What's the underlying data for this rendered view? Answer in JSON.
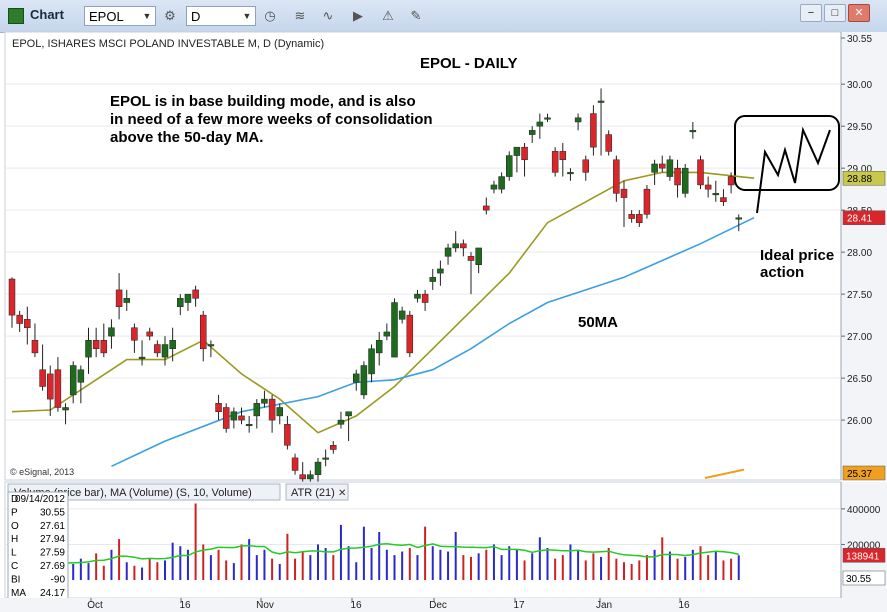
{
  "window": {
    "title": "Chart",
    "symbol": "EPOL",
    "interval": "D",
    "buttons": [
      "−",
      "□",
      "✕"
    ]
  },
  "toolbar_icons": [
    "settings-icon",
    "clock-icon",
    "line-chart-icon",
    "play-icon",
    "alert-icon",
    "draw-icon"
  ],
  "price_pane": {
    "header": "EPOL, ISHARES MSCI POLAND INVESTABLE M, D (Dynamic)",
    "chart_title": "EPOL - DAILY",
    "annotation": [
      "EPOL is in base building mode, and is also",
      "in need of a few more weeks of consolidation",
      "above the 50-day MA."
    ],
    "ma_label": "50MA",
    "ideal_label": [
      "Ideal price",
      "action"
    ],
    "copyright": "© eSignal, 2013",
    "y_ticks": [
      "30.55",
      "30.00",
      "29.50",
      "29.00",
      "28.50",
      "28.00",
      "27.50",
      "27.00",
      "26.50",
      "26.00"
    ],
    "badges": [
      {
        "text": "28.88",
        "value": 28.88,
        "bg": "#c8c84a",
        "fg": "#000000"
      },
      {
        "text": "28.41",
        "value": 28.41,
        "bg": "#d9262b",
        "fg": "#ffffff"
      },
      {
        "text": "25.37",
        "value": 25.37,
        "bg": "#f0a020",
        "fg": "#000000"
      }
    ]
  },
  "volume_pane": {
    "tabs": [
      "Volume (price bar), MA (Volume) (S, 10, Volume)",
      "ATR (21)"
    ],
    "tab_close": "✕",
    "y_ticks": [
      "400000",
      "200000"
    ],
    "badges": [
      {
        "text": "138941",
        "bg": "#d9262b",
        "fg": "#ffffff"
      },
      {
        "text": "30.55",
        "bg": "#ffffff",
        "fg": "#000000"
      }
    ]
  },
  "data_window": {
    "rows": [
      {
        "label": "D",
        "value": "09/14/2012"
      },
      {
        "label": "P",
        "value": "30.55"
      },
      {
        "label": "O",
        "value": "27.61"
      },
      {
        "label": "H",
        "value": "27.94"
      },
      {
        "label": "L",
        "value": "27.59"
      },
      {
        "label": "C",
        "value": "27.69"
      },
      {
        "label": "BI",
        "value": "-90"
      },
      {
        "label": "MA",
        "value": "24.17"
      }
    ]
  },
  "x_labels": [
    "Oct",
    "16",
    "Nov",
    "16",
    "Dec",
    "17",
    "Jan",
    "16"
  ],
  "colors": {
    "up": "#1e6b1e",
    "down": "#d9262b",
    "ma_short": "#9a9a1f",
    "ma_50": "#3aa0e0",
    "vol_up": "#2a2acc",
    "vol_down": "#cc2222",
    "vol_ma": "#22cc22",
    "atr": "#f0a020"
  },
  "chart_data": {
    "type": "candlestick",
    "ylim": [
      25.37,
      30.55
    ],
    "candles": [
      [
        27.68,
        27.7,
        27.1,
        27.25
      ],
      [
        27.25,
        27.3,
        27.05,
        27.15
      ],
      [
        27.2,
        27.35,
        26.9,
        27.1
      ],
      [
        26.95,
        27.15,
        26.75,
        26.8
      ],
      [
        26.6,
        26.9,
        26.35,
        26.4
      ],
      [
        26.55,
        26.65,
        26.05,
        26.25
      ],
      [
        26.6,
        26.75,
        26.1,
        26.15
      ],
      [
        26.12,
        26.2,
        25.95,
        26.15
      ],
      [
        26.3,
        26.7,
        26.2,
        26.65
      ],
      [
        26.45,
        26.65,
        26.2,
        26.6
      ],
      [
        26.75,
        27.1,
        26.55,
        26.95
      ],
      [
        26.95,
        27.1,
        26.75,
        26.85
      ],
      [
        26.95,
        27.15,
        26.75,
        26.8
      ],
      [
        27.0,
        27.2,
        26.85,
        27.1
      ],
      [
        27.55,
        27.75,
        27.2,
        27.35
      ],
      [
        27.4,
        27.55,
        27.3,
        27.45
      ],
      [
        27.1,
        27.15,
        26.8,
        26.95
      ],
      [
        26.75,
        26.95,
        26.65,
        26.75
      ],
      [
        27.05,
        27.1,
        26.95,
        27.0
      ],
      [
        26.9,
        26.95,
        26.75,
        26.8
      ],
      [
        26.75,
        27.0,
        26.65,
        26.9
      ],
      [
        26.85,
        27.1,
        26.7,
        26.95
      ],
      [
        27.35,
        27.5,
        27.25,
        27.45
      ],
      [
        27.4,
        27.5,
        27.3,
        27.5
      ],
      [
        27.55,
        27.6,
        27.35,
        27.45
      ],
      [
        27.25,
        27.3,
        26.7,
        26.85
      ],
      [
        26.9,
        26.95,
        26.75,
        26.9
      ],
      [
        26.2,
        26.3,
        26.0,
        26.1
      ],
      [
        26.15,
        26.2,
        25.85,
        25.9
      ],
      [
        26.0,
        26.15,
        25.9,
        26.1
      ],
      [
        26.05,
        26.15,
        25.95,
        26.0
      ],
      [
        25.95,
        26.05,
        25.85,
        25.95
      ],
      [
        26.05,
        26.25,
        25.9,
        26.2
      ],
      [
        26.2,
        26.35,
        26.15,
        26.25
      ],
      [
        26.25,
        26.3,
        25.85,
        26.0
      ],
      [
        26.05,
        26.2,
        25.95,
        26.15
      ],
      [
        25.95,
        26.05,
        25.65,
        25.7
      ],
      [
        25.55,
        25.6,
        25.35,
        25.4
      ],
      [
        25.35,
        25.5,
        25.25,
        25.3
      ],
      [
        25.3,
        25.4,
        25.2,
        25.35
      ],
      [
        25.35,
        25.55,
        25.25,
        25.5
      ],
      [
        25.55,
        25.65,
        25.45,
        25.55
      ],
      [
        25.7,
        25.75,
        25.6,
        25.65
      ],
      [
        25.95,
        26.1,
        25.9,
        26.0
      ],
      [
        26.05,
        26.1,
        25.75,
        26.1
      ],
      [
        26.45,
        26.6,
        26.35,
        26.55
      ],
      [
        26.3,
        26.7,
        26.25,
        26.65
      ],
      [
        26.55,
        26.9,
        26.45,
        26.85
      ],
      [
        26.8,
        27.05,
        26.65,
        26.95
      ],
      [
        27.0,
        27.15,
        26.95,
        27.05
      ],
      [
        26.75,
        27.45,
        26.75,
        27.4
      ],
      [
        27.2,
        27.35,
        27.15,
        27.3
      ],
      [
        27.25,
        27.3,
        26.75,
        26.8
      ],
      [
        27.45,
        27.55,
        27.4,
        27.5
      ],
      [
        27.5,
        27.55,
        27.3,
        27.4
      ],
      [
        27.65,
        27.8,
        27.55,
        27.7
      ],
      [
        27.75,
        27.9,
        27.6,
        27.8
      ],
      [
        27.95,
        28.1,
        27.85,
        28.05
      ],
      [
        28.05,
        28.25,
        28.0,
        28.1
      ],
      [
        28.1,
        28.15,
        27.95,
        28.05
      ],
      [
        27.95,
        28.0,
        27.5,
        27.9
      ],
      [
        27.85,
        28.05,
        27.75,
        28.05
      ],
      [
        28.55,
        28.65,
        28.45,
        28.5
      ],
      [
        28.75,
        28.85,
        28.7,
        28.8
      ],
      [
        28.75,
        28.95,
        28.7,
        28.9
      ],
      [
        28.9,
        29.2,
        28.85,
        29.15
      ],
      [
        29.15,
        29.25,
        28.95,
        29.25
      ],
      [
        29.25,
        29.3,
        28.9,
        29.1
      ],
      [
        29.4,
        29.5,
        29.3,
        29.45
      ],
      [
        29.5,
        29.65,
        29.35,
        29.55
      ],
      [
        29.6,
        29.65,
        29.55,
        29.6
      ],
      [
        29.2,
        29.25,
        28.9,
        28.95
      ],
      [
        29.2,
        29.3,
        28.9,
        29.1
      ],
      [
        28.95,
        29.0,
        28.85,
        28.95
      ],
      [
        29.55,
        29.65,
        29.45,
        29.6
      ],
      [
        29.1,
        29.15,
        28.85,
        28.95
      ],
      [
        29.65,
        29.75,
        29.15,
        29.25
      ],
      [
        29.8,
        29.95,
        29.15,
        29.8
      ],
      [
        29.4,
        29.45,
        29.15,
        29.2
      ],
      [
        29.1,
        29.15,
        28.6,
        28.7
      ],
      [
        28.75,
        28.85,
        28.3,
        28.65
      ],
      [
        28.45,
        28.5,
        28.35,
        28.4
      ],
      [
        28.45,
        28.5,
        28.3,
        28.35
      ],
      [
        28.75,
        28.8,
        28.4,
        28.45
      ],
      [
        28.95,
        29.1,
        28.8,
        29.05
      ],
      [
        29.05,
        29.15,
        28.95,
        29.0
      ],
      [
        28.9,
        29.15,
        28.85,
        29.1
      ],
      [
        29.0,
        29.1,
        28.65,
        28.8
      ],
      [
        28.7,
        29.05,
        28.65,
        29.0
      ],
      [
        29.45,
        29.55,
        29.35,
        29.45
      ],
      [
        29.1,
        29.15,
        28.75,
        28.8
      ],
      [
        28.8,
        28.9,
        28.65,
        28.75
      ],
      [
        28.7,
        28.85,
        28.6,
        28.7
      ],
      [
        28.65,
        28.75,
        28.55,
        28.6
      ],
      [
        28.9,
        28.95,
        28.7,
        28.8
      ],
      [
        28.4,
        28.45,
        28.25,
        28.41
      ]
    ],
    "ma_short": [
      [
        0,
        26.1
      ],
      [
        5,
        26.12
      ],
      [
        10,
        26.42
      ],
      [
        15,
        26.72
      ],
      [
        20,
        26.72
      ],
      [
        25,
        26.95
      ],
      [
        30,
        26.55
      ],
      [
        35,
        26.25
      ],
      [
        40,
        25.85
      ],
      [
        45,
        26.05
      ],
      [
        50,
        26.4
      ],
      [
        55,
        26.85
      ],
      [
        60,
        27.3
      ],
      [
        65,
        27.75
      ],
      [
        70,
        28.35
      ],
      [
        75,
        28.6
      ],
      [
        80,
        28.85
      ],
      [
        85,
        28.95
      ],
      [
        90,
        28.95
      ],
      [
        97,
        28.88
      ]
    ],
    "ma_50": [
      [
        13,
        25.45
      ],
      [
        20,
        25.75
      ],
      [
        30,
        26.1
      ],
      [
        40,
        26.28
      ],
      [
        45,
        26.45
      ],
      [
        50,
        26.48
      ],
      [
        55,
        26.6
      ],
      [
        60,
        26.85
      ],
      [
        65,
        27.15
      ],
      [
        70,
        27.4
      ],
      [
        75,
        27.55
      ],
      [
        80,
        27.7
      ],
      [
        85,
        27.9
      ],
      [
        90,
        28.1
      ],
      [
        97,
        28.41
      ]
    ],
    "volume": [
      60,
      70,
      65,
      80,
      90,
      110,
      140,
      160,
      90,
      120,
      95,
      150,
      80,
      170,
      230,
      100,
      80,
      70,
      120,
      100,
      110,
      210,
      190,
      170,
      430,
      200,
      140,
      170,
      110,
      95,
      200,
      230,
      140,
      170,
      120,
      90,
      260,
      120,
      160,
      140,
      200,
      180,
      140,
      310,
      190,
      100,
      300,
      180,
      270,
      170,
      140,
      160,
      180,
      140,
      300,
      190,
      170,
      160,
      270,
      140,
      130,
      150,
      170,
      200,
      140,
      190,
      170,
      110,
      150,
      240,
      180,
      120,
      140,
      200,
      170,
      110,
      150,
      130,
      180,
      120,
      100,
      90,
      110,
      140,
      170,
      240,
      160,
      120,
      130,
      170,
      190,
      140,
      160,
      110,
      120,
      139
    ],
    "vol_ylim": [
      0,
      450000
    ],
    "x_labels": [
      "Oct",
      "16",
      "Nov",
      "16",
      "Dec",
      "17",
      "Jan",
      "16"
    ]
  }
}
